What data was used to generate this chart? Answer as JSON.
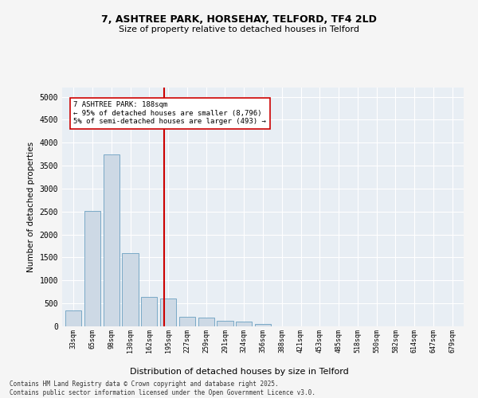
{
  "title1": "7, ASHTREE PARK, HORSEHAY, TELFORD, TF4 2LD",
  "title2": "Size of property relative to detached houses in Telford",
  "xlabel": "Distribution of detached houses by size in Telford",
  "ylabel": "Number of detached properties",
  "categories": [
    "33sqm",
    "65sqm",
    "98sqm",
    "130sqm",
    "162sqm",
    "195sqm",
    "227sqm",
    "259sqm",
    "291sqm",
    "324sqm",
    "356sqm",
    "388sqm",
    "421sqm",
    "453sqm",
    "485sqm",
    "518sqm",
    "550sqm",
    "582sqm",
    "614sqm",
    "647sqm",
    "679sqm"
  ],
  "values": [
    350,
    2520,
    3750,
    1600,
    650,
    600,
    205,
    190,
    120,
    100,
    55,
    0,
    0,
    0,
    0,
    0,
    0,
    0,
    0,
    0,
    0
  ],
  "bar_color": "#cdd9e5",
  "bar_edge_color": "#6a9fc0",
  "bar_width": 0.85,
  "vline_color": "#cc0000",
  "annotation_text": "7 ASHTREE PARK: 188sqm\n← 95% of detached houses are smaller (8,796)\n5% of semi-detached houses are larger (493) →",
  "ylim": [
    0,
    5200
  ],
  "yticks": [
    0,
    500,
    1000,
    1500,
    2000,
    2500,
    3000,
    3500,
    4000,
    4500,
    5000
  ],
  "background_color": "#e8eef4",
  "grid_color": "#ffffff",
  "fig_bg": "#f5f5f5",
  "footer1": "Contains HM Land Registry data © Crown copyright and database right 2025.",
  "footer2": "Contains public sector information licensed under the Open Government Licence v3.0."
}
